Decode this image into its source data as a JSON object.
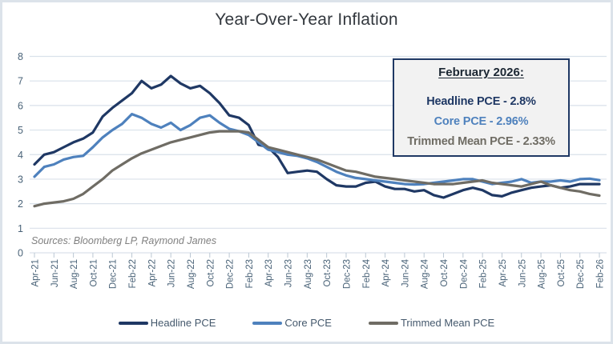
{
  "chart_data": {
    "type": "line",
    "title": "Year-Over-Year Inflation",
    "xlabel": "",
    "ylabel": "",
    "ylim": [
      0,
      8
    ],
    "ytick_step": 1,
    "grid": "horizontal",
    "legend_position": "bottom",
    "x_tick_every": 2,
    "x_months": [
      "Apr-21",
      "May-21",
      "Jun-21",
      "Jul-21",
      "Aug-21",
      "Sep-21",
      "Oct-21",
      "Nov-21",
      "Dec-21",
      "Jan-22",
      "Feb-22",
      "Mar-22",
      "Apr-22",
      "May-22",
      "Jun-22",
      "Jul-22",
      "Aug-22",
      "Sep-22",
      "Oct-22",
      "Nov-22",
      "Dec-22",
      "Jan-23",
      "Feb-23",
      "Mar-23",
      "Apr-23",
      "May-23",
      "Jun-23",
      "Jul-23",
      "Aug-23",
      "Sep-23",
      "Oct-23",
      "Nov-23",
      "Dec-23",
      "Jan-24",
      "Feb-24",
      "Mar-24",
      "Apr-24",
      "May-24",
      "Jun-24",
      "Jul-24",
      "Aug-24",
      "Sep-24",
      "Oct-24",
      "Nov-24",
      "Dec-24",
      "Jan-25",
      "Feb-25",
      "Mar-25",
      "Apr-25",
      "May-25",
      "Jun-25",
      "Jul-25",
      "Aug-25",
      "Sep-25",
      "Oct-25",
      "Nov-25",
      "Dec-25",
      "Jan-26",
      "Feb-26"
    ],
    "series": [
      {
        "name": "Headline PCE",
        "color": "#1F3864",
        "values": [
          3.6,
          4.0,
          4.1,
          4.3,
          4.5,
          4.65,
          4.9,
          5.55,
          5.9,
          6.2,
          6.5,
          7.0,
          6.7,
          6.85,
          7.2,
          6.9,
          6.7,
          6.8,
          6.5,
          6.1,
          5.6,
          5.5,
          5.2,
          4.4,
          4.3,
          3.9,
          3.25,
          3.3,
          3.35,
          3.3,
          3.0,
          2.75,
          2.7,
          2.7,
          2.85,
          2.9,
          2.7,
          2.6,
          2.6,
          2.5,
          2.55,
          2.35,
          2.25,
          2.4,
          2.55,
          2.65,
          2.55,
          2.35,
          2.3,
          2.45,
          2.55,
          2.65,
          2.7,
          2.75,
          2.65,
          2.7,
          2.8,
          2.8,
          2.8
        ]
      },
      {
        "name": "Core PCE",
        "color": "#4E81BD",
        "values": [
          3.1,
          3.5,
          3.6,
          3.8,
          3.9,
          3.95,
          4.3,
          4.7,
          5.0,
          5.25,
          5.65,
          5.5,
          5.25,
          5.1,
          5.3,
          5.0,
          5.2,
          5.5,
          5.6,
          5.3,
          5.05,
          4.95,
          4.8,
          4.5,
          4.2,
          4.1,
          4.0,
          3.95,
          3.85,
          3.7,
          3.5,
          3.3,
          3.15,
          3.05,
          3.0,
          2.95,
          2.9,
          2.85,
          2.8,
          2.78,
          2.8,
          2.85,
          2.9,
          2.95,
          3.0,
          3.0,
          2.9,
          2.8,
          2.85,
          2.9,
          3.0,
          2.85,
          2.9,
          2.9,
          2.95,
          2.9,
          3.0,
          3.02,
          2.96
        ]
      },
      {
        "name": "Trimmed Mean PCE",
        "color": "#6F6C64",
        "values": [
          1.9,
          2.0,
          2.05,
          2.1,
          2.2,
          2.4,
          2.7,
          3.0,
          3.35,
          3.6,
          3.85,
          4.05,
          4.2,
          4.35,
          4.5,
          4.6,
          4.7,
          4.8,
          4.9,
          4.95,
          4.95,
          4.95,
          4.9,
          4.6,
          4.3,
          4.2,
          4.1,
          4.0,
          3.9,
          3.8,
          3.65,
          3.5,
          3.35,
          3.3,
          3.2,
          3.1,
          3.05,
          3.0,
          2.95,
          2.9,
          2.85,
          2.8,
          2.8,
          2.8,
          2.85,
          2.9,
          2.95,
          2.85,
          2.8,
          2.75,
          2.7,
          2.8,
          2.9,
          2.75,
          2.65,
          2.55,
          2.5,
          2.4,
          2.33
        ]
      }
    ]
  },
  "annotation": {
    "heading": "February 2026:",
    "lines": [
      {
        "text": "Headline PCE - 2.8%",
        "color": "#1F3864"
      },
      {
        "text": "Core PCE - 2.96%",
        "color": "#4E81BD"
      },
      {
        "text": "Trimmed Mean PCE - 2.33%",
        "color": "#6F6C64"
      }
    ]
  },
  "source_note": "Sources: Bloomberg LP, Raymond James",
  "palette": {
    "grid": "#D9E1EA",
    "tick": "#BBC7D3",
    "axis_text": "#4A6378",
    "title_text": "#33383E",
    "legend_text": "#44586C",
    "source_text": "#808080",
    "callout_bg": "#F2F2F2",
    "callout_border": "#1F3864",
    "callout_heading": "#1C2733",
    "figure_border": "#DCE3EA",
    "background": "#FFFFFF"
  }
}
